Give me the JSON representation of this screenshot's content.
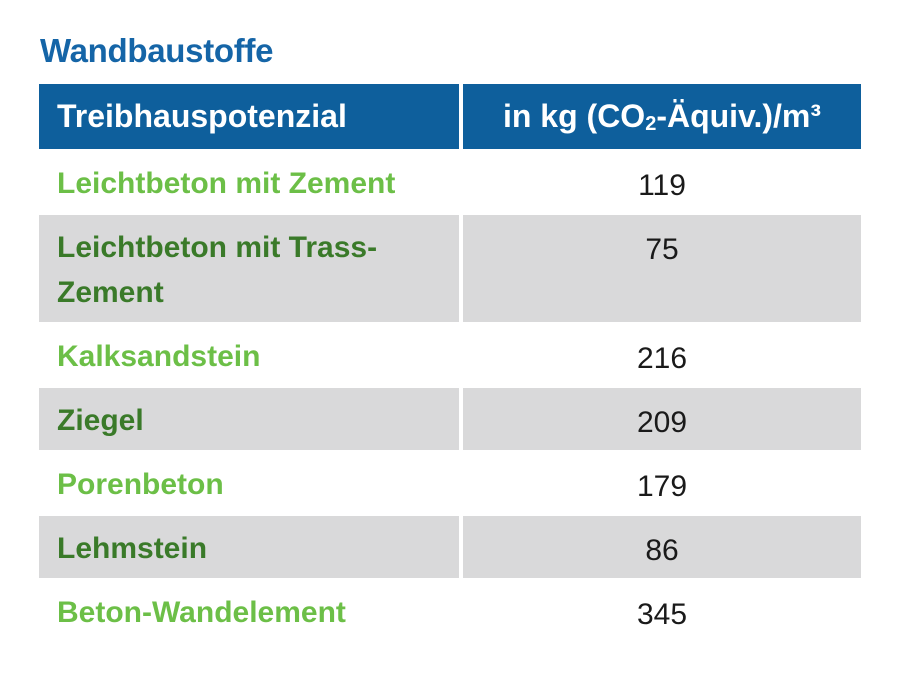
{
  "title": "Wandbaustoffe",
  "header": {
    "col1": "Treibhauspotenzial",
    "col2_pre": "in kg (CO",
    "col2_sub": "2",
    "col2_post": "-Äquiv.)/m³"
  },
  "rows": [
    {
      "label": "Leichtbeton mit Zement",
      "value": "119"
    },
    {
      "label": "Leichtbeton mit Trass-Zement",
      "value": "75"
    },
    {
      "label": "Kalksandstein",
      "value": "216"
    },
    {
      "label": "Ziegel",
      "value": "209"
    },
    {
      "label": "Porenbeton",
      "value": "179"
    },
    {
      "label": "Lehmstein",
      "value": "86"
    },
    {
      "label": "Beton-Wandelement",
      "value": "345"
    }
  ],
  "colors": {
    "title": "#1565a7",
    "header_bg": "#0e5f9c",
    "label_light": "#6cbf47",
    "label_dark": "#3a7a29",
    "row_alt_bg": "#d9d9da"
  }
}
